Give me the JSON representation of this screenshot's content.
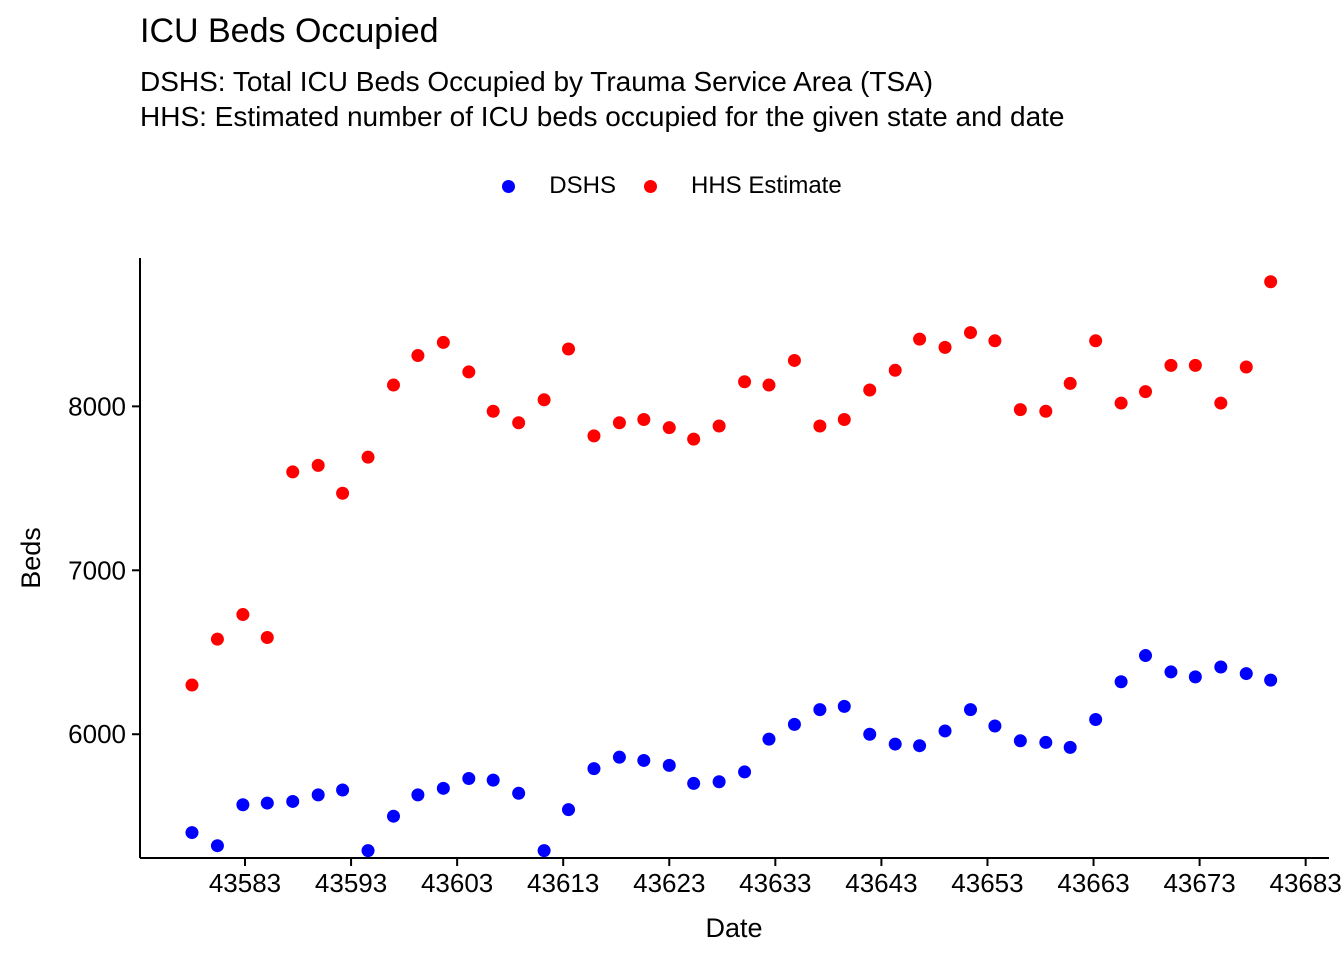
{
  "title": "ICU Beds Occupied",
  "subtitle_lines": [
    "DSHS: Total ICU Beds Occupied by Trauma Service Area (TSA)",
    "HHS: Estimated number of ICU beds occupied for the given state and date"
  ],
  "legend": [
    {
      "name": "DSHS",
      "color": "#0000FF"
    },
    {
      "name": "HHS Estimate",
      "color": "#FF0000"
    }
  ],
  "chart_data": {
    "type": "scatter",
    "xlabel": "Date",
    "ylabel": "Beds",
    "x_ticks": [
      43583,
      43593,
      43603,
      43613,
      43623,
      43633,
      43643,
      43653,
      43663,
      43673,
      43683
    ],
    "x_tick_labels": [
      "43583",
      "43593",
      "43603",
      "43613",
      "43623",
      "43633",
      "43643",
      "43653",
      "43663",
      "43673",
      "43683"
    ],
    "y_ticks": [
      6000,
      7000,
      8000
    ],
    "xlim": [
      43573.1,
      43685.2
    ],
    "ylim": [
      5245,
      8905
    ],
    "grid": false,
    "legend_position": "top",
    "series": [
      {
        "name": "DSHS",
        "color": "#0000FF",
        "x": [
          43578,
          43580.4,
          43582.8,
          43585.1,
          43587.5,
          43589.9,
          43592.2,
          43594.6,
          43597,
          43599.3,
          43601.7,
          43604.1,
          43606.4,
          43608.8,
          43611.2,
          43613.5,
          43615.9,
          43618.3,
          43620.6,
          43623,
          43625.3,
          43627.7,
          43630.1,
          43632.4,
          43634.8,
          43637.2,
          43639.5,
          43641.9,
          43644.3,
          43646.6,
          43649,
          43651.4,
          43653.7,
          43656.1,
          43658.5,
          43660.8,
          43663.2,
          43665.6,
          43667.9,
          43670.3,
          43672.6,
          43675,
          43677.4,
          43679.7
        ],
        "y": [
          5400,
          5320,
          5570,
          5580,
          5590,
          5630,
          5660,
          5290,
          5500,
          5630,
          5670,
          5730,
          5720,
          5640,
          5290,
          5540,
          5790,
          5860,
          5840,
          5810,
          5700,
          5710,
          5770,
          5970,
          6060,
          6150,
          6170,
          6000,
          5940,
          5930,
          6020,
          6150,
          6050,
          5960,
          5950,
          5920,
          6090,
          6320,
          6480,
          6380,
          6350,
          6410,
          6370,
          6330
        ]
      },
      {
        "name": "HHS Estimate",
        "color": "#FF0000",
        "x": [
          43578,
          43580.4,
          43582.8,
          43585.1,
          43587.5,
          43589.9,
          43592.2,
          43594.6,
          43597,
          43599.3,
          43601.7,
          43604.1,
          43606.4,
          43608.8,
          43611.2,
          43613.5,
          43615.9,
          43618.3,
          43620.6,
          43623,
          43625.3,
          43627.7,
          43630.1,
          43632.4,
          43634.8,
          43637.2,
          43639.5,
          43641.9,
          43644.3,
          43646.6,
          43649,
          43651.4,
          43653.7,
          43656.1,
          43658.5,
          43660.8,
          43663.2,
          43665.6,
          43667.9,
          43670.3,
          43672.6,
          43675,
          43677.4,
          43679.7
        ],
        "y": [
          6300,
          6580,
          6730,
          6590,
          7600,
          7640,
          7470,
          7690,
          8130,
          8310,
          8390,
          8210,
          7970,
          7900,
          8040,
          8350,
          7820,
          7900,
          7920,
          7870,
          7800,
          7880,
          8150,
          8130,
          8280,
          7880,
          7920,
          8100,
          8220,
          8410,
          8360,
          8450,
          8400,
          7980,
          7970,
          8140,
          8400,
          8020,
          8090,
          8250,
          8250,
          8020,
          8240,
          8760
        ]
      }
    ]
  }
}
